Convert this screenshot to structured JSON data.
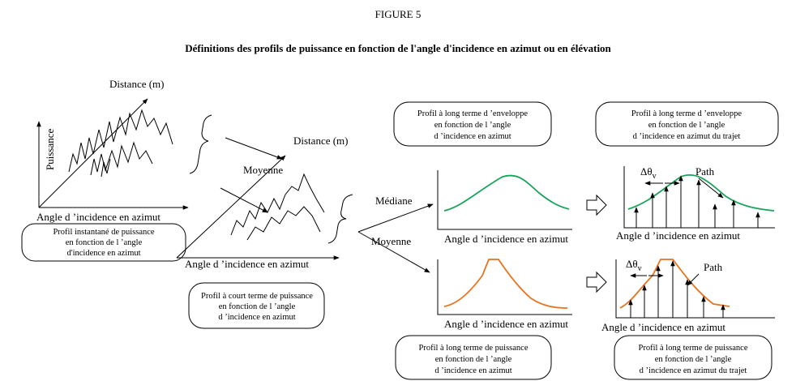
{
  "header": {
    "figure": "FIGURE 5",
    "title": "Définitions des profils de puissance en fonction de l'angle d'incidence en azimut ou en élévation"
  },
  "instant": {
    "distance": "Distance (m)",
    "power": "Puissance",
    "axis": "Angle d ’incidence en azimut",
    "box": [
      "Profil instantané de puissance",
      "en fonction de l ’angle",
      "d'incidence en azimut"
    ]
  },
  "averaging": {
    "label": "Moyenne"
  },
  "short_term": {
    "distance": "Distance (m)",
    "axis": "Angle d ’incidence en azimut",
    "box": [
      "Profil à court terme de puissance",
      "en fonction de l ’angle",
      "d ’incidence en azimut"
    ]
  },
  "branches": {
    "median": "Médiane",
    "mean": "Moyenne"
  },
  "envelope": {
    "axis": "Angle d ’incidence en azimut",
    "box": [
      "Profil à long terme d ’enveloppe",
      "en fonction de l ’angle",
      "d ’incidence en azimut"
    ]
  },
  "envelope_paths": {
    "axis": "Angle d ’incidence en azimut",
    "spread": "Δθ",
    "spread_sub": "v",
    "path": "Path",
    "box": [
      "Profil à long terme d ’enveloppe",
      "en fonction de l ’angle",
      "d ’incidence en azimut du trajet"
    ]
  },
  "power_long": {
    "axis": "Angle d ’incidence en azimut",
    "box": [
      "Profil à long terme de puissance",
      "en fonction de l ’angle",
      "d ’incidence en azimut"
    ]
  },
  "power_paths": {
    "axis": "Angle d ’incidence en azimut",
    "spread": "Δθ",
    "spread_sub": "v",
    "path": "Path",
    "box": [
      "Profil à long terme de puissance",
      "en fonction de l ’angle",
      "d ’incidence en azimut du trajet"
    ]
  }
}
